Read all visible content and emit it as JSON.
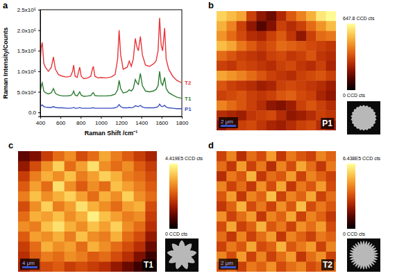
{
  "chart_data": [
    {
      "type": "line",
      "panel_label": "a",
      "xlabel": "Raman Shift /cm⁻¹",
      "ylabel": "Raman Intensity/Counts",
      "x": [
        400,
        410,
        420,
        435,
        450,
        480,
        510,
        530,
        550,
        580,
        620,
        660,
        700,
        720,
        730,
        745,
        765,
        780,
        790,
        805,
        830,
        870,
        900,
        915,
        925,
        940,
        970,
        1000,
        1050,
        1100,
        1140,
        1165,
        1180,
        1195,
        1220,
        1260,
        1280,
        1300,
        1320,
        1340,
        1355,
        1370,
        1390,
        1410,
        1440,
        1480,
        1520,
        1545,
        1565,
        1580,
        1595,
        1610,
        1630,
        1645,
        1670,
        1710,
        1750,
        1800
      ],
      "series": [
        {
          "name": "T2",
          "color": "#e8353a",
          "values": [
            125000,
            160000,
            170000,
            120000,
            110000,
            100000,
            110000,
            135000,
            105000,
            92000,
            88000,
            86000,
            88000,
            100000,
            115000,
            88000,
            85000,
            100000,
            110000,
            88000,
            82000,
            84000,
            88000,
            105000,
            112000,
            88000,
            84000,
            85000,
            84000,
            86000,
            92000,
            130000,
            200000,
            140000,
            105000,
            110000,
            125000,
            112000,
            130000,
            180000,
            160000,
            150000,
            185000,
            140000,
            115000,
            112000,
            118000,
            125000,
            150000,
            230000,
            165000,
            150000,
            205000,
            130000,
            105000,
            88000,
            78000,
            72000
          ]
        },
        {
          "name": "T1",
          "color": "#2e7d32",
          "values": [
            50000,
            65000,
            72000,
            52000,
            48000,
            45000,
            48000,
            58000,
            46000,
            42000,
            40000,
            40000,
            41000,
            45000,
            52000,
            42000,
            40000,
            46000,
            50000,
            42000,
            39000,
            40000,
            41000,
            46000,
            48000,
            41000,
            40000,
            40000,
            40000,
            41000,
            44000,
            55000,
            78000,
            58000,
            47000,
            50000,
            55000,
            52000,
            58000,
            80000,
            72000,
            68000,
            95000,
            65000,
            52000,
            50000,
            52000,
            56000,
            65000,
            100000,
            72000,
            66000,
            85000,
            58000,
            48000,
            42000,
            37000,
            34000
          ]
        },
        {
          "name": "P1",
          "color": "#3a4fc0",
          "values": [
            15000,
            17000,
            18000,
            14000,
            13000,
            12000,
            12000,
            14000,
            12000,
            11000,
            11000,
            10000,
            10000,
            11000,
            12000,
            10000,
            10000,
            11000,
            12000,
            10000,
            10000,
            10000,
            10000,
            11000,
            11000,
            10000,
            10000,
            10000,
            10000,
            10000,
            11000,
            14000,
            19000,
            14000,
            11000,
            11000,
            12000,
            11000,
            12000,
            16000,
            15000,
            14000,
            17000,
            13000,
            11000,
            11000,
            11000,
            12000,
            14000,
            20000,
            15000,
            14000,
            17000,
            13000,
            11000,
            10000,
            9000,
            9000
          ]
        }
      ],
      "xlim": [
        400,
        1800
      ],
      "xticks": [
        400,
        600,
        800,
        1000,
        1200,
        1400,
        1600,
        1800
      ],
      "ylim": [
        -10000,
        250000
      ],
      "yticks": [
        {
          "value": 0,
          "label": "0.0"
        },
        {
          "value": 50000,
          "label": "5.0x10⁴"
        },
        {
          "value": 100000,
          "label": "1.0x10⁵"
        },
        {
          "value": 150000,
          "label": "1.5x10⁵"
        },
        {
          "value": 200000,
          "label": "2.0x10⁵"
        },
        {
          "value": 250000,
          "label": "2.5x10⁵"
        }
      ]
    },
    {
      "type": "heatmap",
      "panel_label": "b",
      "title": "P1",
      "scale_bar": "2 μm",
      "cells": [
        [
          560,
          520,
          480,
          300,
          200,
          150,
          250,
          350,
          420,
          500,
          600,
          640
        ],
        [
          500,
          420,
          300,
          200,
          120,
          180,
          300,
          260,
          300,
          380,
          450,
          520
        ],
        [
          450,
          380,
          320,
          260,
          240,
          300,
          350,
          280,
          200,
          300,
          380,
          400
        ],
        [
          520,
          480,
          400,
          350,
          300,
          330,
          380,
          360,
          340,
          320,
          300,
          280
        ],
        [
          380,
          340,
          300,
          280,
          260,
          300,
          320,
          280,
          300,
          340,
          280,
          260
        ],
        [
          300,
          280,
          320,
          300,
          280,
          260,
          300,
          320,
          280,
          260,
          300,
          240
        ],
        [
          480,
          450,
          420,
          380,
          340,
          300,
          280,
          260,
          300,
          320,
          340,
          300
        ],
        [
          340,
          300,
          280,
          260,
          220,
          240,
          300,
          320,
          300,
          280,
          260,
          220
        ],
        [
          300,
          320,
          340,
          300,
          280,
          300,
          340,
          360,
          320,
          300,
          240,
          200
        ],
        [
          420,
          380,
          340,
          300,
          260,
          200,
          180,
          220,
          300,
          340,
          300,
          260
        ],
        [
          260,
          240,
          220,
          280,
          300,
          320,
          260,
          200,
          220,
          260,
          300,
          280
        ],
        [
          200,
          260,
          300,
          320,
          280,
          240,
          220,
          260,
          300,
          320,
          260,
          220
        ]
      ],
      "color_range": [
        0,
        647.8
      ],
      "color_ticks": [
        {
          "value": 0,
          "label": "0 CCD cts"
        },
        {
          "value": 647.8,
          "label": "647.8 CCD cts"
        }
      ]
    },
    {
      "type": "heatmap",
      "panel_label": "c",
      "title": "T1",
      "scale_bar": "4 μm",
      "cells": [
        [
          90000,
          120000,
          200000,
          260000,
          300000,
          220000,
          260000,
          330000,
          280000,
          240000,
          200000,
          160000
        ],
        [
          140000,
          220000,
          300000,
          380000,
          260000,
          320000,
          400000,
          300000,
          260000,
          300000,
          240000,
          200000
        ],
        [
          200000,
          280000,
          340000,
          300000,
          360000,
          280000,
          320000,
          380000,
          340000,
          280000,
          260000,
          220000
        ],
        [
          240000,
          320000,
          260000,
          400000,
          300000,
          240000,
          300000,
          260000,
          360000,
          320000,
          280000,
          240000
        ],
        [
          280000,
          360000,
          300000,
          340000,
          380000,
          320000,
          260000,
          340000,
          300000,
          380000,
          300000,
          260000
        ],
        [
          220000,
          300000,
          380000,
          280000,
          320000,
          400000,
          340000,
          300000,
          260000,
          320000,
          340000,
          220000
        ],
        [
          260000,
          340000,
          320000,
          360000,
          300000,
          340000,
          420000,
          360000,
          320000,
          280000,
          300000,
          200000
        ],
        [
          300000,
          280000,
          360000,
          400000,
          340000,
          300000,
          360000,
          320000,
          380000,
          300000,
          260000,
          180000
        ],
        [
          240000,
          320000,
          300000,
          340000,
          280000,
          360000,
          300000,
          280000,
          340000,
          260000,
          220000,
          140000
        ],
        [
          200000,
          260000,
          340000,
          300000,
          320000,
          260000,
          340000,
          300000,
          260000,
          220000,
          180000,
          100000
        ],
        [
          180000,
          240000,
          280000,
          260000,
          300000,
          280000,
          240000,
          260000,
          220000,
          180000,
          120000,
          60000
        ],
        [
          160000,
          200000,
          220000,
          240000,
          200000,
          220000,
          200000,
          180000,
          140000,
          100000,
          60000,
          30000
        ]
      ],
      "color_range": [
        0,
        441900
      ],
      "color_ticks": [
        {
          "value": 0,
          "label": "0 CCD cts"
        },
        {
          "value": 441900,
          "label": "4.419E5 CCD cts"
        }
      ]
    },
    {
      "type": "heatmap",
      "panel_label": "d",
      "title": "T2",
      "scale_bar": "2 μm",
      "cells": [
        [
          300000,
          420000,
          260000,
          380000,
          320000,
          460000,
          280000,
          400000,
          340000,
          300000,
          420000,
          360000
        ],
        [
          380000,
          280000,
          460000,
          300000,
          400000,
          260000,
          420000,
          320000,
          480000,
          380000,
          280000,
          400000
        ],
        [
          260000,
          400000,
          340000,
          500000,
          280000,
          380000,
          340000,
          460000,
          300000,
          420000,
          360000,
          300000
        ],
        [
          420000,
          300000,
          380000,
          280000,
          440000,
          320000,
          480000,
          280000,
          400000,
          340000,
          460000,
          320000
        ],
        [
          340000,
          460000,
          280000,
          420000,
          360000,
          520000,
          300000,
          420000,
          360000,
          480000,
          300000,
          380000
        ],
        [
          280000,
          360000,
          500000,
          320000,
          400000,
          300000,
          440000,
          340000,
          520000,
          320000,
          400000,
          340000
        ],
        [
          440000,
          300000,
          380000,
          460000,
          280000,
          420000,
          360000,
          480000,
          300000,
          420000,
          360000,
          280000
        ],
        [
          320000,
          480000,
          300000,
          360000,
          500000,
          340000,
          400000,
          300000,
          440000,
          380000,
          460000,
          320000
        ],
        [
          380000,
          280000,
          420000,
          300000,
          380000,
          460000,
          280000,
          420000,
          360000,
          300000,
          400000,
          360000
        ],
        [
          300000,
          400000,
          340000,
          480000,
          320000,
          360000,
          500000,
          340000,
          400000,
          460000,
          300000,
          420000
        ],
        [
          420000,
          320000,
          460000,
          300000,
          420000,
          300000,
          380000,
          460000,
          280000,
          380000,
          440000,
          300000
        ],
        [
          340000,
          380000,
          300000,
          400000,
          360000,
          440000,
          320000,
          380000,
          420000,
          320000,
          360000,
          380000
        ]
      ],
      "color_range": [
        0,
        643800
      ],
      "color_ticks": [
        {
          "value": 0,
          "label": "0 CCD cts"
        },
        {
          "value": 643800,
          "label": "6.438E5 CCD cts"
        }
      ]
    }
  ]
}
